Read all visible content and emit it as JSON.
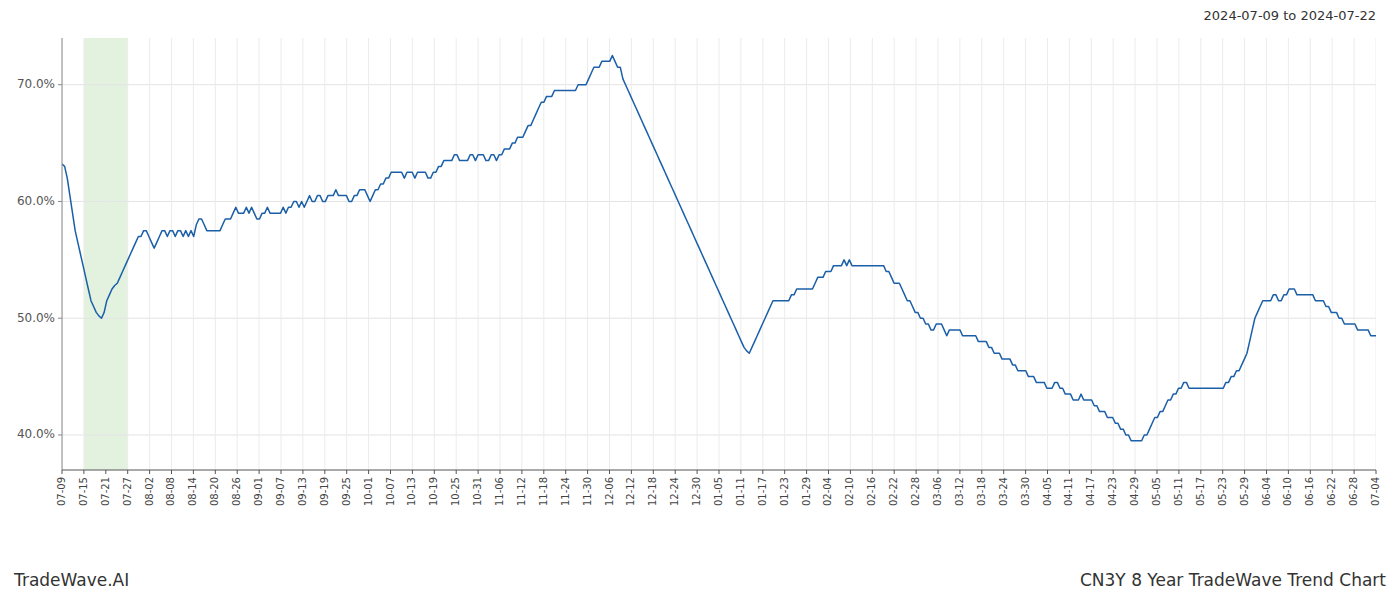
{
  "chart_data": {
    "type": "line",
    "title": "CN3Y 8 Year TradeWave Trend Chart",
    "subtitle": "2024-07-09 to 2024-07-22",
    "annotations": [
      "TradeWave.AI"
    ],
    "color": "#1a5fa8",
    "grid": true,
    "xlim": [
      0,
      499
    ],
    "ylim": [
      37.0,
      74.0
    ],
    "yticks": [
      {
        "value": 40.0,
        "label": "40.0%"
      },
      {
        "value": 50.0,
        "label": "50.0%"
      },
      {
        "value": 60.0,
        "label": "60.0%"
      },
      {
        "value": 70.0,
        "label": "70.0%"
      }
    ],
    "highlight": {
      "start": 8.3167,
      "end": 24.95,
      "color": "#d6ecd2"
    },
    "xticks": [
      {
        "value": 0,
        "label": "07-09"
      },
      {
        "value": 8.3167,
        "label": "07-15"
      },
      {
        "value": 16.6333,
        "label": "07-21"
      },
      {
        "value": 24.95,
        "label": "07-27"
      },
      {
        "value": 33.2667,
        "label": "08-02"
      },
      {
        "value": 41.5833,
        "label": "08-08"
      },
      {
        "value": 49.9,
        "label": "08-14"
      },
      {
        "value": 58.2167,
        "label": "08-20"
      },
      {
        "value": 66.5333,
        "label": "08-26"
      },
      {
        "value": 74.85,
        "label": "09-01"
      },
      {
        "value": 83.1667,
        "label": "09-07"
      },
      {
        "value": 91.4833,
        "label": "09-13"
      },
      {
        "value": 99.8,
        "label": "09-19"
      },
      {
        "value": 108.1167,
        "label": "09-25"
      },
      {
        "value": 116.4333,
        "label": "10-01"
      },
      {
        "value": 124.75,
        "label": "10-07"
      },
      {
        "value": 133.0667,
        "label": "10-13"
      },
      {
        "value": 141.3833,
        "label": "10-19"
      },
      {
        "value": 149.7,
        "label": "10-25"
      },
      {
        "value": 158.0167,
        "label": "10-31"
      },
      {
        "value": 166.3333,
        "label": "11-06"
      },
      {
        "value": 174.65,
        "label": "11-12"
      },
      {
        "value": 182.9667,
        "label": "11-18"
      },
      {
        "value": 191.2833,
        "label": "11-24"
      },
      {
        "value": 199.6,
        "label": "11-30"
      },
      {
        "value": 207.9167,
        "label": "12-06"
      },
      {
        "value": 216.2333,
        "label": "12-12"
      },
      {
        "value": 224.55,
        "label": "12-18"
      },
      {
        "value": 232.8667,
        "label": "12-24"
      },
      {
        "value": 241.1833,
        "label": "12-30"
      },
      {
        "value": 249.5,
        "label": "01-05"
      },
      {
        "value": 257.8167,
        "label": "01-11"
      },
      {
        "value": 266.1333,
        "label": "01-17"
      },
      {
        "value": 274.45,
        "label": "01-23"
      },
      {
        "value": 282.7667,
        "label": "01-29"
      },
      {
        "value": 291.0833,
        "label": "02-04"
      },
      {
        "value": 299.4,
        "label": "02-10"
      },
      {
        "value": 307.7167,
        "label": "02-16"
      },
      {
        "value": 316.0333,
        "label": "02-22"
      },
      {
        "value": 324.35,
        "label": "02-28"
      },
      {
        "value": 332.6667,
        "label": "03-06"
      },
      {
        "value": 340.9833,
        "label": "03-12"
      },
      {
        "value": 349.3,
        "label": "03-18"
      },
      {
        "value": 357.6167,
        "label": "03-24"
      },
      {
        "value": 365.9333,
        "label": "03-30"
      },
      {
        "value": 374.25,
        "label": "04-05"
      },
      {
        "value": 382.5667,
        "label": "04-11"
      },
      {
        "value": 390.8833,
        "label": "04-17"
      },
      {
        "value": 399.2,
        "label": "04-23"
      },
      {
        "value": 407.5167,
        "label": "04-29"
      },
      {
        "value": 415.8333,
        "label": "05-05"
      },
      {
        "value": 424.15,
        "label": "05-11"
      },
      {
        "value": 432.4667,
        "label": "05-17"
      },
      {
        "value": 440.7833,
        "label": "05-23"
      },
      {
        "value": 449.1,
        "label": "05-29"
      },
      {
        "value": 457.4167,
        "label": "06-04"
      },
      {
        "value": 465.7333,
        "label": "06-10"
      },
      {
        "value": 474.05,
        "label": "06-16"
      },
      {
        "value": 482.3667,
        "label": "06-22"
      },
      {
        "value": 490.6833,
        "label": "06-28"
      },
      {
        "value": 499,
        "label": "07-04"
      }
    ],
    "values": [
      63.2,
      63.0,
      62.0,
      60.5,
      59.0,
      57.5,
      56.5,
      55.5,
      54.5,
      53.5,
      52.5,
      51.5,
      51.0,
      50.5,
      50.2,
      50.0,
      50.5,
      51.5,
      52.0,
      52.5,
      52.8,
      53.0,
      53.5,
      54.0,
      54.5,
      55.0,
      55.5,
      56.0,
      56.5,
      57.0,
      57.0,
      57.5,
      57.5,
      57.0,
      56.5,
      56.0,
      56.5,
      57.0,
      57.5,
      57.5,
      57.0,
      57.5,
      57.5,
      57.0,
      57.5,
      57.5,
      57.0,
      57.5,
      57.0,
      57.5,
      57.0,
      58.0,
      58.5,
      58.5,
      58.0,
      57.5,
      57.5,
      57.5,
      57.5,
      57.5,
      57.5,
      58.0,
      58.5,
      58.5,
      58.5,
      59.0,
      59.5,
      59.0,
      59.0,
      59.0,
      59.5,
      59.0,
      59.5,
      59.0,
      58.5,
      58.5,
      59.0,
      59.0,
      59.5,
      59.0,
      59.0,
      59.0,
      59.0,
      59.0,
      59.5,
      59.0,
      59.5,
      59.5,
      60.0,
      60.0,
      59.5,
      60.0,
      59.5,
      60.0,
      60.5,
      60.0,
      60.0,
      60.5,
      60.5,
      60.0,
      60.0,
      60.5,
      60.5,
      60.5,
      61.0,
      60.5,
      60.5,
      60.5,
      60.5,
      60.0,
      60.0,
      60.5,
      60.5,
      61.0,
      61.0,
      61.0,
      60.5,
      60.0,
      60.5,
      61.0,
      61.0,
      61.5,
      61.5,
      62.0,
      62.0,
      62.5,
      62.5,
      62.5,
      62.5,
      62.5,
      62.0,
      62.5,
      62.5,
      62.5,
      62.0,
      62.5,
      62.5,
      62.5,
      62.5,
      62.0,
      62.0,
      62.5,
      62.5,
      63.0,
      63.0,
      63.5,
      63.5,
      63.5,
      63.5,
      64.0,
      64.0,
      63.5,
      63.5,
      63.5,
      63.5,
      64.0,
      64.0,
      63.5,
      64.0,
      64.0,
      64.0,
      63.5,
      63.5,
      64.0,
      64.0,
      63.5,
      64.0,
      64.0,
      64.5,
      64.5,
      64.5,
      65.0,
      65.0,
      65.5,
      65.5,
      65.5,
      66.0,
      66.5,
      66.5,
      67.0,
      67.5,
      68.0,
      68.5,
      68.5,
      69.0,
      69.0,
      69.0,
      69.5,
      69.5,
      69.5,
      69.5,
      69.5,
      69.5,
      69.5,
      69.5,
      69.5,
      70.0,
      70.0,
      70.0,
      70.0,
      70.5,
      71.0,
      71.5,
      71.5,
      71.5,
      72.0,
      72.0,
      72.0,
      72.0,
      72.5,
      72.0,
      71.5,
      71.5,
      70.5,
      70.0,
      69.5,
      69.0,
      68.5,
      68.0,
      67.5,
      67.0,
      66.5,
      66.0,
      65.5,
      65.0,
      64.5,
      64.0,
      63.5,
      63.0,
      62.5,
      62.0,
      61.5,
      61.0,
      60.5,
      60.0,
      59.5,
      59.0,
      58.5,
      58.0,
      57.5,
      57.0,
      56.5,
      56.0,
      55.5,
      55.0,
      54.5,
      54.0,
      53.5,
      53.0,
      52.5,
      52.0,
      51.5,
      51.0,
      50.5,
      50.0,
      49.5,
      49.0,
      48.5,
      48.0,
      47.5,
      47.2,
      47.0,
      47.5,
      48.0,
      48.5,
      49.0,
      49.5,
      50.0,
      50.5,
      51.0,
      51.5,
      51.5,
      51.5,
      51.5,
      51.5,
      51.5,
      51.5,
      52.0,
      52.0,
      52.5,
      52.5,
      52.5,
      52.5,
      52.5,
      52.5,
      52.5,
      53.0,
      53.5,
      53.5,
      53.5,
      54.0,
      54.0,
      54.0,
      54.5,
      54.5,
      54.5,
      54.5,
      55.0,
      54.5,
      55.0,
      54.5,
      54.5,
      54.5,
      54.5,
      54.5,
      54.5,
      54.5,
      54.5,
      54.5,
      54.5,
      54.5,
      54.5,
      54.5,
      54.0,
      54.0,
      53.5,
      53.0,
      53.0,
      53.0,
      52.5,
      52.0,
      51.5,
      51.5,
      51.0,
      50.5,
      50.5,
      50.0,
      50.0,
      49.5,
      49.5,
      49.0,
      49.0,
      49.5,
      49.5,
      49.5,
      49.0,
      48.5,
      49.0,
      49.0,
      49.0,
      49.0,
      49.0,
      48.5,
      48.5,
      48.5,
      48.5,
      48.5,
      48.5,
      48.0,
      48.0,
      48.0,
      48.0,
      47.5,
      47.5,
      47.0,
      47.0,
      47.0,
      46.5,
      46.5,
      46.5,
      46.5,
      46.0,
      46.0,
      45.5,
      45.5,
      45.5,
      45.5,
      45.0,
      45.0,
      45.0,
      44.5,
      44.5,
      44.5,
      44.5,
      44.0,
      44.0,
      44.0,
      44.5,
      44.5,
      44.0,
      44.0,
      43.5,
      43.5,
      43.5,
      43.0,
      43.0,
      43.0,
      43.5,
      43.0,
      43.0,
      43.0,
      43.0,
      42.5,
      42.5,
      42.0,
      42.0,
      42.0,
      41.5,
      41.5,
      41.5,
      41.0,
      41.0,
      40.5,
      40.5,
      40.0,
      40.0,
      39.5,
      39.5,
      39.5,
      39.5,
      39.5,
      40.0,
      40.0,
      40.5,
      41.0,
      41.5,
      41.5,
      42.0,
      42.0,
      42.5,
      43.0,
      43.0,
      43.5,
      43.5,
      44.0,
      44.0,
      44.5,
      44.5,
      44.0,
      44.0,
      44.0,
      44.0,
      44.0,
      44.0,
      44.0,
      44.0,
      44.0,
      44.0,
      44.0,
      44.0,
      44.0,
      44.0,
      44.5,
      44.5,
      45.0,
      45.0,
      45.5,
      45.5,
      46.0,
      46.5,
      47.0,
      48.0,
      49.0,
      50.0,
      50.5,
      51.0,
      51.5,
      51.5,
      51.5,
      51.5,
      52.0,
      52.0,
      51.5,
      51.5,
      52.0,
      52.0,
      52.5,
      52.5,
      52.5,
      52.0,
      52.0,
      52.0,
      52.0,
      52.0,
      52.0,
      52.0,
      51.5,
      51.5,
      51.5,
      51.5,
      51.0,
      51.0,
      50.5,
      50.5,
      50.5,
      50.0,
      50.0,
      49.5,
      49.5,
      49.5,
      49.5,
      49.5,
      49.0,
      49.0,
      49.0,
      49.0,
      49.0,
      48.5,
      48.5,
      48.5
    ]
  }
}
